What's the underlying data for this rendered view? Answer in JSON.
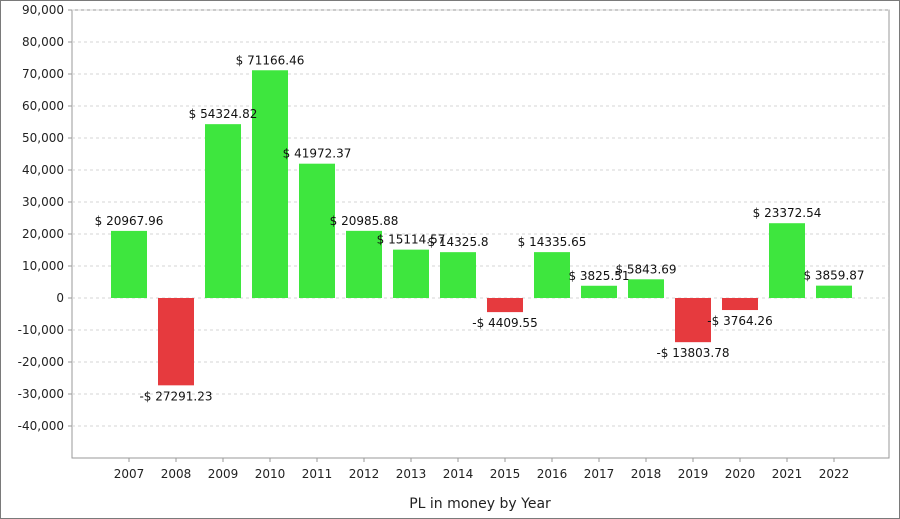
{
  "chart_data": {
    "type": "bar",
    "xlabel": "PL in money by Year",
    "ylabel": "",
    "ylim": [
      -50000,
      90000
    ],
    "yticks": [
      90000,
      80000,
      70000,
      60000,
      50000,
      40000,
      30000,
      20000,
      10000,
      0,
      -10000,
      -20000,
      -30000,
      -40000
    ],
    "ytick_labels": [
      "90,000",
      "80,000",
      "70,000",
      "60,000",
      "50,000",
      "40,000",
      "30,000",
      "20,000",
      "10,000",
      "0",
      "-10,000",
      "-20,000",
      "-30,000",
      "-40,000"
    ],
    "categories": [
      "2007",
      "2008",
      "2009",
      "2010",
      "2011",
      "2012",
      "2013",
      "2014",
      "2015",
      "2016",
      "2017",
      "2018",
      "2019",
      "2020",
      "2021",
      "2022"
    ],
    "values": [
      20967.96,
      -27291.23,
      54324.82,
      71166.46,
      41972.37,
      20985.88,
      15114.57,
      14325.8,
      -4409.55,
      14335.65,
      3825.51,
      5843.69,
      -13803.78,
      -3764.26,
      23372.54,
      3859.87
    ],
    "value_labels": [
      "$ 20967.96",
      "-$ 27291.23",
      "$ 54324.82",
      "$ 71166.46",
      "$ 41972.37",
      "$ 20985.88",
      "$ 15114.57",
      "$ 14325.8",
      "-$ 4409.55",
      "$ 14335.65",
      "$ 3825.51",
      "$ 5843.69",
      "-$ 13803.78",
      "-$ 3764.26",
      "$ 23372.54",
      "$ 3859.87"
    ],
    "grid": true,
    "colors": {
      "positive": "#3ee63e",
      "negative": "#e63a3e",
      "grid": "#d4d4d4",
      "axis": "#9a9a9a"
    }
  }
}
